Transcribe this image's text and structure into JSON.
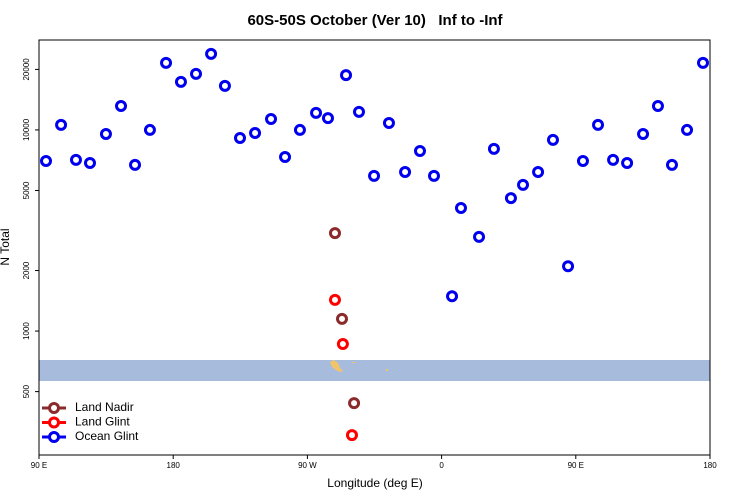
{
  "chart_data": {
    "type": "scatter",
    "title": "60S-50S October (Ver 10)   Inf to -Inf",
    "x_label": "Longitude (deg E)",
    "y_label": "N Total",
    "log_y": true,
    "xlim": [
      90,
      540
    ],
    "xticks": [
      {
        "value": 90,
        "label": "90 E"
      },
      180,
      {
        "value": 270,
        "label": "90 W"
      },
      {
        "value": 360,
        "label": "0"
      },
      {
        "value": 450,
        "label": "90 E"
      },
      {
        "value": 540,
        "label": "180"
      }
    ],
    "ylim": [
      242,
      28000
    ],
    "yticks": [
      500,
      1000,
      2000,
      5000,
      10000,
      20000
    ],
    "legend": "bottom-left",
    "series": [
      {
        "name": "Land Nadir",
        "color": "#8b2a2a",
        "x": [
          288.5,
          293.2,
          301.3
        ],
        "values": [
          3070,
          1150,
          438
        ]
      },
      {
        "name": "Land Glint",
        "color": "#ff0000",
        "x": [
          288.5,
          293.8,
          299.9
        ],
        "values": [
          1430,
          862,
          304
        ]
      },
      {
        "name": "Ocean Glint",
        "color": "#0000ee",
        "x": [
          94.7,
          104.8,
          114.8,
          124.2,
          134.9,
          145,
          154.4,
          164.4,
          175.2,
          185.2,
          195.3,
          205.4,
          214.7,
          224.8,
          234.9,
          245.6,
          255,
          265,
          275.8,
          283.8,
          295.9,
          304.6,
          314.7,
          324.7,
          335.5,
          345.5,
          354.9,
          367,
          373,
          385.1,
          395.1,
          406.5,
          414.6,
          424.7,
          434.7,
          444.8,
          454.8,
          464.9,
          475,
          484.4,
          495.1,
          505.1,
          514.5,
          524.6,
          535.3
        ],
        "values": [
          7010,
          10590,
          7100,
          6850,
          9550,
          13160,
          6700,
          10000,
          21540,
          17330,
          18990,
          23880,
          16560,
          9120,
          9660,
          11340,
          7340,
          10000,
          12150,
          11450,
          18740,
          12290,
          5910,
          10830,
          6180,
          7860,
          5910,
          1490,
          4090,
          2940,
          8050,
          4580,
          5330,
          6180,
          8930,
          2100,
          7010,
          10590,
          7100,
          6850,
          9550,
          13160,
          6700,
          10000,
          21540
        ]
      }
    ]
  }
}
